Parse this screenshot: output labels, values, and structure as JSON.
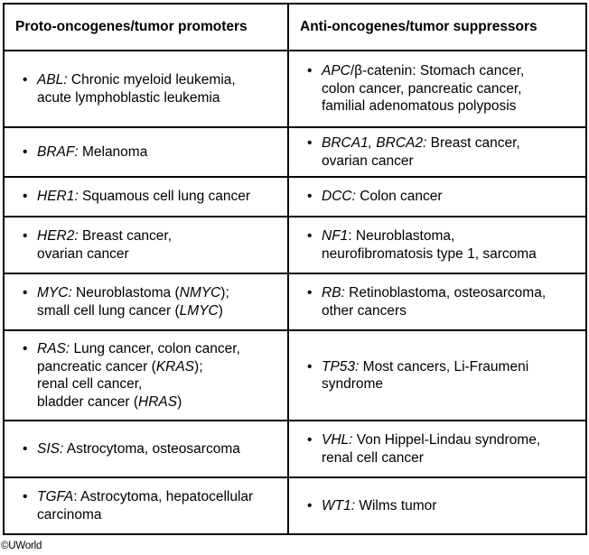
{
  "table": {
    "headers": {
      "left": "Proto-oncogenes/tumor promoters",
      "right": "Anti-oncogenes/tumor suppressors"
    },
    "rows": [
      {
        "left": [
          [
            {
              "t": "ABL:",
              "i": true
            },
            {
              "t": " Chronic myeloid leukemia,"
            }
          ],
          [
            {
              "t": "acute lymphoblastic leukemia"
            }
          ]
        ],
        "right": [
          [
            {
              "t": "APC",
              "i": true
            },
            {
              "t": "/β-catenin: Stomach cancer,"
            }
          ],
          [
            {
              "t": "colon cancer, pancreatic cancer,"
            }
          ],
          [
            {
              "t": "familial adenomatous polyposis"
            }
          ]
        ]
      },
      {
        "left": [
          [
            {
              "t": "BRAF:",
              "i": true
            },
            {
              "t": " Melanoma"
            }
          ]
        ],
        "right": [
          [
            {
              "t": "BRCA1, BRCA2:",
              "i": true
            },
            {
              "t": " Breast cancer,"
            }
          ],
          [
            {
              "t": "ovarian cancer"
            }
          ]
        ]
      },
      {
        "left": [
          [
            {
              "t": "HER1:",
              "i": true
            },
            {
              "t": " Squamous cell lung cancer"
            }
          ]
        ],
        "right": [
          [
            {
              "t": "DCC:",
              "i": true
            },
            {
              "t": " Colon cancer"
            }
          ]
        ]
      },
      {
        "left": [
          [
            {
              "t": "HER2:",
              "i": true
            },
            {
              "t": " Breast cancer,"
            }
          ],
          [
            {
              "t": "ovarian cancer"
            }
          ]
        ],
        "right": [
          [
            {
              "t": "NF1",
              "i": true
            },
            {
              "t": ": Neuroblastoma,"
            }
          ],
          [
            {
              "t": "neurofibromatosis type 1, sarcoma"
            }
          ]
        ]
      },
      {
        "left": [
          [
            {
              "t": "MYC:",
              "i": true
            },
            {
              "t": " Neuroblastoma ("
            },
            {
              "t": "NMYC",
              "i": true
            },
            {
              "t": ");"
            }
          ],
          [
            {
              "t": "small cell lung cancer ("
            },
            {
              "t": "LMYC",
              "i": true
            },
            {
              "t": ")"
            }
          ]
        ],
        "right": [
          [
            {
              "t": "RB:",
              "i": true
            },
            {
              "t": " Retinoblastoma, osteosarcoma,"
            }
          ],
          [
            {
              "t": "other cancers"
            }
          ]
        ]
      },
      {
        "left": [
          [
            {
              "t": "RAS:",
              "i": true
            },
            {
              "t": " Lung cancer, colon cancer,"
            }
          ],
          [
            {
              "t": "pancreatic cancer ("
            },
            {
              "t": "KRAS",
              "i": true
            },
            {
              "t": ");"
            }
          ],
          [
            {
              "t": "renal cell cancer,"
            }
          ],
          [
            {
              "t": "bladder cancer ("
            },
            {
              "t": "HRAS",
              "i": true
            },
            {
              "t": ")"
            }
          ]
        ],
        "right": [
          [
            {
              "t": "TP53:",
              "i": true
            },
            {
              "t": " Most cancers, Li-Fraumeni"
            }
          ],
          [
            {
              "t": "syndrome"
            }
          ]
        ]
      },
      {
        "left": [
          [
            {
              "t": "SIS:",
              "i": true
            },
            {
              "t": " Astrocytoma, osteosarcoma"
            }
          ]
        ],
        "right": [
          [
            {
              "t": "VHL:",
              "i": true
            },
            {
              "t": " Von Hippel-Lindau syndrome,"
            }
          ],
          [
            {
              "t": "renal cell cancer"
            }
          ]
        ]
      },
      {
        "left": [
          [
            {
              "t": "TGFA",
              "i": true
            },
            {
              "t": ": Astrocytoma, hepatocellular"
            }
          ],
          [
            {
              "t": "carcinoma"
            }
          ]
        ],
        "right": [
          [
            {
              "t": "WT1:",
              "i": true
            },
            {
              "t": " Wilms tumor"
            }
          ]
        ]
      }
    ]
  },
  "copyright": "©UWorld"
}
